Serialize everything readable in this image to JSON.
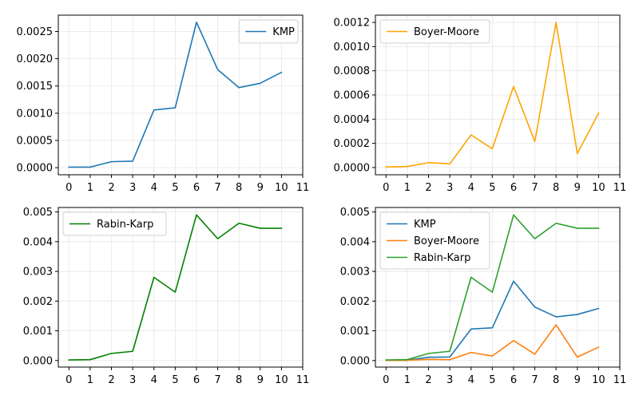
{
  "chart_data": [
    {
      "type": "line",
      "x": [
        0,
        1,
        2,
        3,
        4,
        5,
        6,
        7,
        8,
        9,
        10
      ],
      "xlim": [
        -0.5,
        11
      ],
      "xticks": [
        "0",
        "1",
        "2",
        "3",
        "4",
        "5",
        "6",
        "7",
        "8",
        "9",
        "10",
        "11"
      ],
      "ylim": [
        -0.00013,
        0.0028
      ],
      "yticks": [
        "0.0000",
        "0.0005",
        "0.0010",
        "0.0015",
        "0.0020",
        "0.0025"
      ],
      "grid": true,
      "legend": "upper-right",
      "series": [
        {
          "name": "KMP",
          "color": "#1f77b4",
          "values": [
            1e-05,
            1e-05,
            0.00011,
            0.00012,
            0.00106,
            0.0011,
            0.00267,
            0.0018,
            0.00147,
            0.00155,
            0.00175
          ]
        }
      ]
    },
    {
      "type": "line",
      "x": [
        0,
        1,
        2,
        3,
        4,
        5,
        6,
        7,
        8,
        9,
        10
      ],
      "xlim": [
        -0.5,
        11
      ],
      "xticks": [
        "0",
        "1",
        "2",
        "3",
        "4",
        "5",
        "6",
        "7",
        "8",
        "9",
        "10",
        "11"
      ],
      "ylim": [
        -6e-05,
        0.00126
      ],
      "yticks": [
        "0.0000",
        "0.0002",
        "0.0004",
        "0.0006",
        "0.0008",
        "0.0010",
        "0.0012"
      ],
      "grid": true,
      "legend": "upper-left",
      "series": [
        {
          "name": "Boyer-Moore",
          "color": "#ffa500",
          "values": [
            5e-06,
            8e-06,
            4e-05,
            3e-05,
            0.00027,
            0.000155,
            0.00067,
            0.000215,
            0.0012,
            0.000115,
            0.00045
          ]
        }
      ]
    },
    {
      "type": "line",
      "x": [
        0,
        1,
        2,
        3,
        4,
        5,
        6,
        7,
        8,
        9,
        10
      ],
      "xlim": [
        -0.5,
        11
      ],
      "xticks": [
        "0",
        "1",
        "2",
        "3",
        "4",
        "5",
        "6",
        "7",
        "8",
        "9",
        "10",
        "11"
      ],
      "ylim": [
        -0.00022,
        0.00515
      ],
      "yticks": [
        "0.000",
        "0.001",
        "0.002",
        "0.003",
        "0.004",
        "0.005"
      ],
      "grid": true,
      "legend": "upper-left",
      "series": [
        {
          "name": "Rabin-Karp",
          "color": "#008000",
          "values": [
            2e-05,
            3e-05,
            0.00024,
            0.00031,
            0.0028,
            0.0023,
            0.0049,
            0.0041,
            0.00462,
            0.00445,
            0.00445
          ]
        }
      ]
    },
    {
      "type": "line",
      "x": [
        0,
        1,
        2,
        3,
        4,
        5,
        6,
        7,
        8,
        9,
        10
      ],
      "xlim": [
        -0.5,
        11
      ],
      "xticks": [
        "0",
        "1",
        "2",
        "3",
        "4",
        "5",
        "6",
        "7",
        "8",
        "9",
        "10",
        "11"
      ],
      "ylim": [
        -0.00022,
        0.00515
      ],
      "yticks": [
        "0.000",
        "0.001",
        "0.002",
        "0.003",
        "0.004",
        "0.005"
      ],
      "grid": true,
      "legend": "upper-left",
      "series": [
        {
          "name": "KMP",
          "color": "#1f77b4",
          "values": [
            1e-05,
            1e-05,
            0.00011,
            0.00012,
            0.00106,
            0.0011,
            0.00267,
            0.0018,
            0.00147,
            0.00155,
            0.00175
          ]
        },
        {
          "name": "Boyer-Moore",
          "color": "#ff7f0e",
          "values": [
            5e-06,
            8e-06,
            4e-05,
            3e-05,
            0.00027,
            0.000155,
            0.00067,
            0.000215,
            0.0012,
            0.000115,
            0.00045
          ]
        },
        {
          "name": "Rabin-Karp",
          "color": "#2ca02c",
          "values": [
            2e-05,
            3e-05,
            0.00024,
            0.00031,
            0.0028,
            0.0023,
            0.0049,
            0.0041,
            0.00462,
            0.00445,
            0.00445
          ]
        }
      ]
    }
  ]
}
